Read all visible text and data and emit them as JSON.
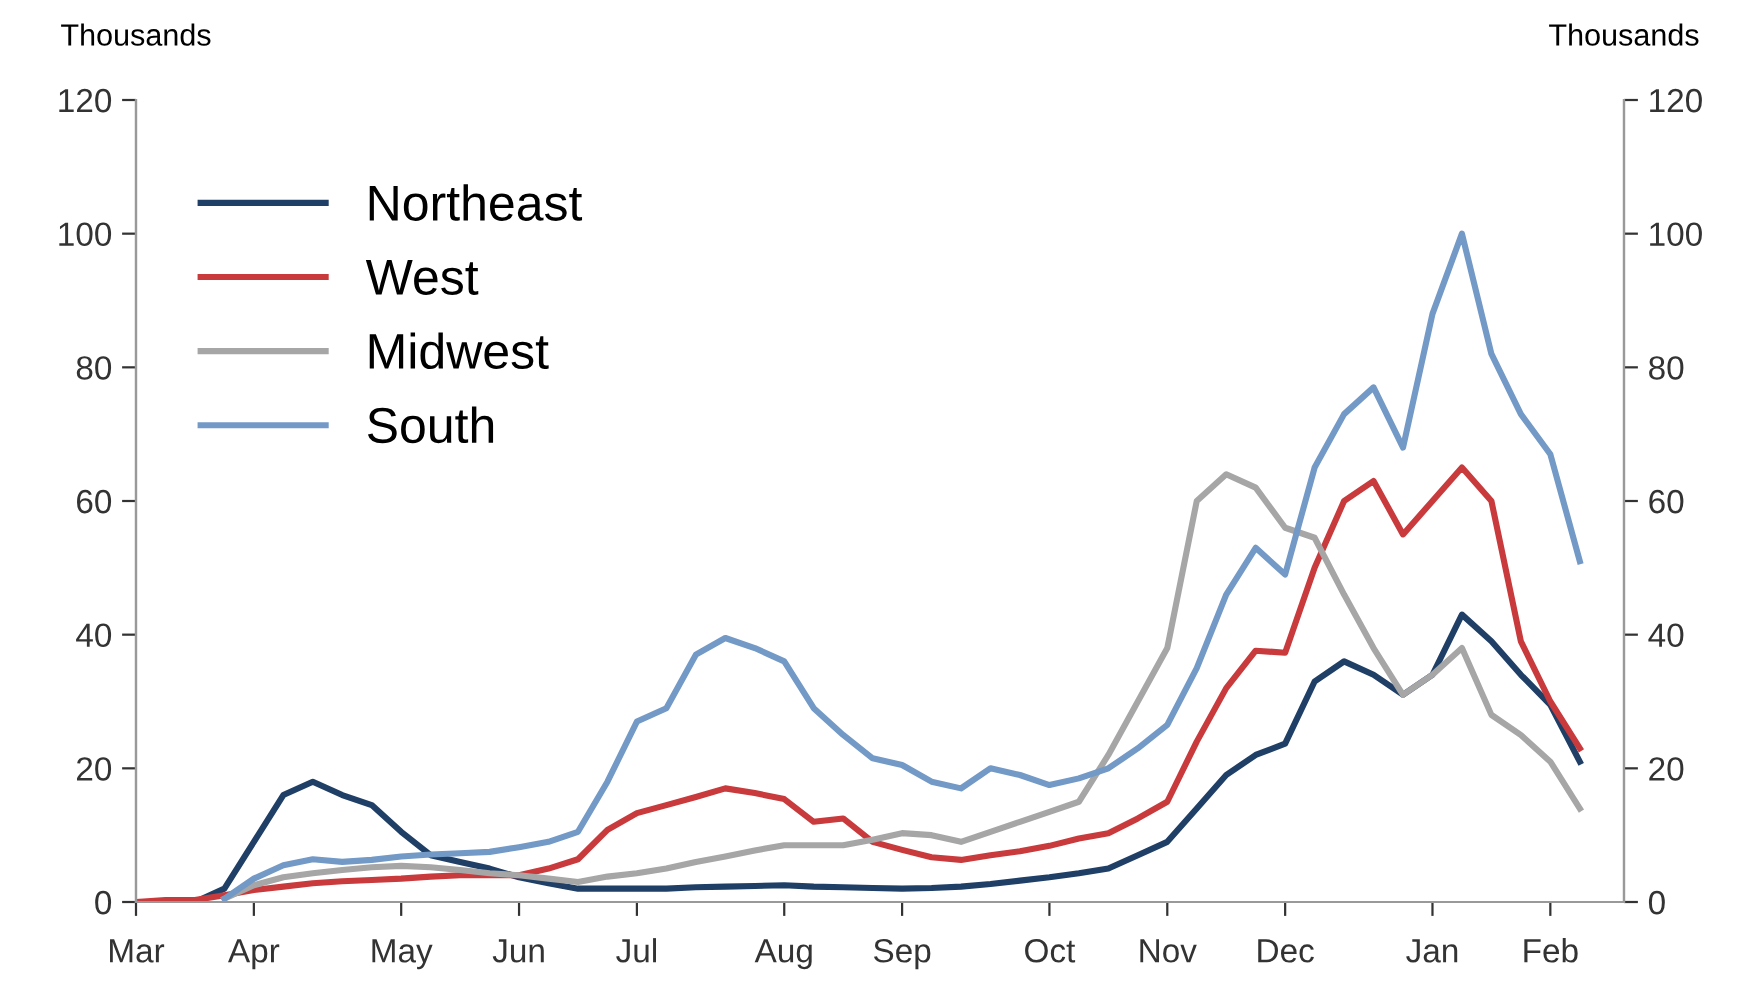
{
  "chart_data": {
    "type": "line",
    "ylabel": "Thousands",
    "y2label": "Thousands",
    "categories": [
      "Mar",
      null,
      null,
      null,
      "Apr",
      null,
      null,
      null,
      null,
      "May",
      null,
      null,
      null,
      "Jun",
      null,
      null,
      null,
      "Jul",
      null,
      null,
      null,
      null,
      "Aug",
      null,
      null,
      null,
      "Sep",
      null,
      null,
      null,
      null,
      "Oct",
      null,
      null,
      null,
      "Nov",
      null,
      null,
      null,
      "Dec",
      null,
      null,
      null,
      null,
      "Jan",
      null,
      null,
      null,
      "Feb",
      null
    ],
    "ylim": [
      0,
      120
    ],
    "yticks": [
      0,
      20,
      40,
      60,
      80,
      100,
      120
    ],
    "y2lim": [
      0,
      120
    ],
    "y2ticks": [
      0,
      20,
      40,
      60,
      80,
      100,
      120
    ],
    "grid": false,
    "legend": "top left",
    "marker": "none",
    "line_style": "solid",
    "series": [
      {
        "name": "Northeast",
        "color": "#1f3f66",
        "values": [
          0,
          0,
          0,
          2,
          9,
          16,
          18,
          16,
          14.5,
          10.5,
          7,
          6,
          5,
          3.7,
          2.8,
          2,
          2,
          2,
          2,
          2.2,
          2.3,
          2.4,
          2.5,
          2.3,
          2.2,
          2.1,
          2,
          2.1,
          2.3,
          2.7,
          3.2,
          3.7,
          4.3,
          5,
          7,
          9,
          14,
          19,
          22,
          23.7,
          33,
          36,
          34,
          31,
          34,
          43,
          39,
          34,
          29.5,
          21
        ]
      },
      {
        "name": "West",
        "color": "#c83a3c",
        "values": [
          0,
          0.3,
          0.3,
          1,
          1.8,
          2.3,
          2.8,
          3.1,
          3.3,
          3.5,
          3.8,
          4,
          4,
          4,
          5,
          6.4,
          10.8,
          13.3,
          14.5,
          15.7,
          17,
          16.3,
          15.4,
          12,
          12.5,
          9,
          7.8,
          6.7,
          6.3,
          7,
          7.6,
          8.4,
          9.5,
          10.3,
          12.5,
          15,
          24,
          32,
          37.6,
          37.3,
          50,
          60,
          63,
          55,
          60,
          65,
          60,
          39,
          30,
          23
        ]
      },
      {
        "name": "Midwest",
        "color": "#a6a6a6",
        "values": [
          null,
          null,
          null,
          0.5,
          2.5,
          3.7,
          4.3,
          4.8,
          5.2,
          5.4,
          5.2,
          4.8,
          4.3,
          4,
          3.5,
          3,
          3.8,
          4.3,
          5,
          6,
          6.8,
          7.7,
          8.5,
          8.5,
          8.5,
          9.3,
          10.3,
          10,
          9,
          10.5,
          12,
          13.5,
          15,
          22,
          30,
          38,
          60,
          64,
          62,
          56,
          54.5,
          46,
          38,
          31,
          34,
          38,
          28,
          25,
          21,
          14
        ]
      },
      {
        "name": "South",
        "color": "#7399c6",
        "values": [
          null,
          null,
          null,
          0.5,
          3.5,
          5.5,
          6.4,
          6,
          6.3,
          6.8,
          7.1,
          7.3,
          7.5,
          8.2,
          9,
          10.5,
          18,
          27,
          29,
          37,
          39.5,
          38,
          36,
          29,
          25,
          21.5,
          20.5,
          18,
          17,
          20,
          19,
          17.5,
          18.5,
          20,
          23,
          26.5,
          35,
          46,
          53,
          49,
          65,
          73,
          77,
          68,
          88,
          100,
          82,
          73,
          67,
          51
        ]
      }
    ]
  }
}
